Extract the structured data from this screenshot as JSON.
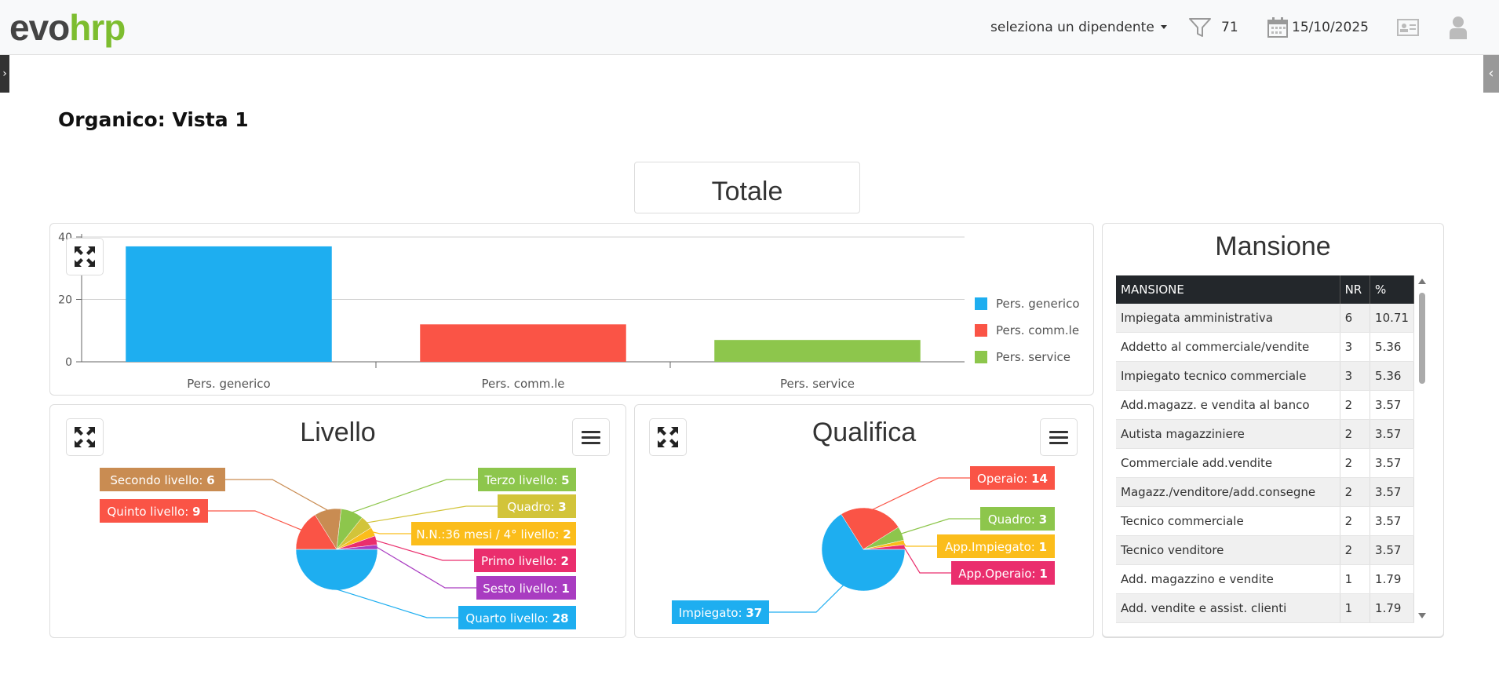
{
  "header": {
    "logo_evo": "evo",
    "logo_hrp": "hrp",
    "employee_select": "seleziona un dipendente",
    "filter_count": "71",
    "date": "15/10/2025"
  },
  "page": {
    "title": "Organico: Vista 1"
  },
  "totale": {
    "title": "Totale",
    "chart_data": {
      "type": "bar",
      "categories": [
        "Pers. generico",
        "Pers. comm.le",
        "Pers. service"
      ],
      "values": [
        37,
        12,
        7
      ],
      "colors": [
        "#1eaef0",
        "#fa5446",
        "#8dc64c"
      ],
      "ylim": [
        0,
        40
      ],
      "yticks": [
        "40",
        "20",
        "0"
      ],
      "legend": [
        "Pers. generico",
        "Pers. comm.le",
        "Pers. service"
      ],
      "legend_position": "right"
    }
  },
  "livello": {
    "title": "Livello",
    "chart_data": {
      "type": "pie",
      "slices": [
        {
          "label": "Quarto livello",
          "value": 28,
          "color": "#1eaef0"
        },
        {
          "label": "Quinto livello",
          "value": 9,
          "color": "#fa5446"
        },
        {
          "label": "Secondo livello",
          "value": 6,
          "color": "#c98c52"
        },
        {
          "label": "Terzo livello",
          "value": 5,
          "color": "#8dc64c"
        },
        {
          "label": "Quadro",
          "value": 3,
          "color": "#d2c43a"
        },
        {
          "label": "N.N.:36 mesi / 4° livello",
          "value": 2,
          "color": "#fbbd1b"
        },
        {
          "label": "Primo livello",
          "value": 2,
          "color": "#ea2e6d"
        },
        {
          "label": "Sesto livello",
          "value": 1,
          "color": "#a93cc1"
        }
      ]
    }
  },
  "qualifica": {
    "title": "Qualifica",
    "chart_data": {
      "type": "pie",
      "slices": [
        {
          "label": "Impiegato",
          "value": 37,
          "color": "#1eaef0"
        },
        {
          "label": "Operaio",
          "value": 14,
          "color": "#fa5446"
        },
        {
          "label": "Quadro",
          "value": 3,
          "color": "#8dc64c"
        },
        {
          "label": "App.Impiegato",
          "value": 1,
          "color": "#fbbd1b"
        },
        {
          "label": "App.Operaio",
          "value": 1,
          "color": "#ea2e6d"
        }
      ]
    }
  },
  "mansione": {
    "title": "Mansione",
    "columns": [
      "MANSIONE",
      "NR",
      "%"
    ],
    "rows": [
      [
        "Impiegata amministrativa",
        "6",
        "10.71"
      ],
      [
        "Addetto al commerciale/vendite",
        "3",
        "5.36"
      ],
      [
        "Impiegato tecnico commerciale",
        "3",
        "5.36"
      ],
      [
        "Add.magazz. e vendita al banco",
        "2",
        "3.57"
      ],
      [
        "Autista magazziniere",
        "2",
        "3.57"
      ],
      [
        "Commerciale add.vendite",
        "2",
        "3.57"
      ],
      [
        "Magazz./venditore/add.consegne",
        "2",
        "3.57"
      ],
      [
        "Tecnico commerciale",
        "2",
        "3.57"
      ],
      [
        "Tecnico venditore",
        "2",
        "3.57"
      ],
      [
        "Add. magazzino e vendite",
        "1",
        "1.79"
      ],
      [
        "Add. vendite e assist. clienti",
        "1",
        "1.79"
      ]
    ]
  }
}
